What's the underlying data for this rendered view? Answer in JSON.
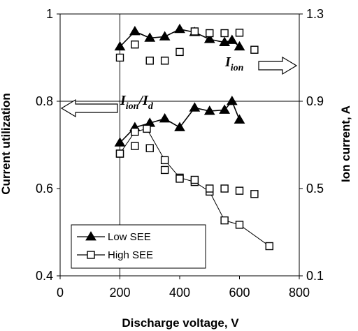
{
  "chart_data": {
    "type": "scatter",
    "xlabel": "Discharge voltage, V",
    "ylabel_left": "Current utilization",
    "ylabel_right": "Ion current, A",
    "xlim": [
      0,
      800
    ],
    "ylim_left": [
      0.4,
      1.0
    ],
    "ylim_right": [
      0.1,
      1.3
    ],
    "x_ticks": [
      "0",
      "200",
      "400",
      "600",
      "800"
    ],
    "y_left_ticks": [
      "0.4",
      "0.6",
      "0.8",
      "1"
    ],
    "y_right_ticks": [
      "0.1",
      "0.5",
      "0.9",
      "1.3"
    ],
    "grid": "major horizontal at 0.8 and vertical at 200",
    "legend_placement": "bottom-left",
    "legend": [
      {
        "label": "Low SEE",
        "marker": "filled-triangle"
      },
      {
        "label": "High SEE",
        "marker": "open-square"
      }
    ],
    "annotations": [
      {
        "text": "I",
        "sub": "ion",
        "arrow": "right",
        "axis": "right"
      },
      {
        "text": "I",
        "sub": "ion",
        "sep": "/",
        "text2": "I",
        "sub2": "d",
        "arrow": "left",
        "axis": "left"
      }
    ],
    "series": [
      {
        "name": "Low SEE",
        "axis": "left",
        "marker": "filled-triangle",
        "line": true,
        "x": [
          200,
          250,
          300,
          350,
          400,
          450,
          500,
          550,
          575,
          600
        ],
        "y": [
          0.925,
          0.96,
          0.945,
          0.948,
          0.965,
          0.958,
          0.942,
          0.935,
          0.94,
          0.925
        ]
      },
      {
        "name": "Low SEE",
        "axis": "right",
        "marker": "filled-triangle",
        "line": true,
        "x": [
          200,
          250,
          300,
          350,
          400,
          450,
          500,
          550,
          575,
          600
        ],
        "y": [
          0.71,
          0.78,
          0.8,
          0.82,
          0.78,
          0.87,
          0.855,
          0.86,
          0.9,
          0.815
        ]
      },
      {
        "name": "High SEE",
        "axis": "left",
        "marker": "open-square",
        "line": false,
        "x": [
          200,
          250,
          300,
          350,
          400,
          450,
          500,
          550,
          600,
          650
        ],
        "y": [
          0.9,
          0.93,
          0.893,
          0.893,
          0.913,
          0.96,
          0.956,
          0.956,
          0.957,
          0.918
        ]
      },
      {
        "name": "High SEE",
        "axis": "left",
        "marker": "open-square",
        "line": true,
        "x": [
          200,
          250,
          290,
          350,
          400,
          450,
          500,
          550,
          600,
          700
        ],
        "y": [
          0.68,
          0.73,
          0.737,
          0.665,
          0.625,
          0.615,
          0.593,
          0.527,
          0.517,
          0.468
        ]
      },
      {
        "name": "High SEE",
        "axis": "right",
        "marker": "open-square",
        "line": false,
        "x": [
          200,
          250,
          300,
          350,
          400,
          450,
          500,
          550,
          600,
          650
        ],
        "y": [
          0.66,
          0.695,
          0.685,
          0.585,
          0.545,
          0.54,
          0.5,
          0.5,
          0.49,
          0.475
        ]
      }
    ]
  }
}
